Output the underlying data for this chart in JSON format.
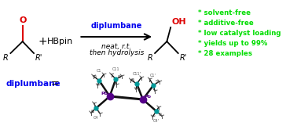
{
  "bg_color": "#ffffff",
  "reaction_arrow_label": "diplumbane",
  "reaction_condition1": "neat, r.t.",
  "reaction_condition2": "then hydrolysis",
  "bullet_color": "#00dd00",
  "bullets": [
    "* solvent-free",
    "* additive-free",
    "* low catalyst loading",
    "* yields up to 99%",
    "* 28 examples"
  ],
  "diplumbane_label": "diplumbane",
  "blue_color": "#0000ee",
  "red_color": "#dd0000",
  "black": "#000000",
  "teal": "#009999",
  "arrow_color": "#0000ee",
  "pb_color": "#550088",
  "figsize": [
    3.78,
    1.75
  ],
  "dpi": 100
}
